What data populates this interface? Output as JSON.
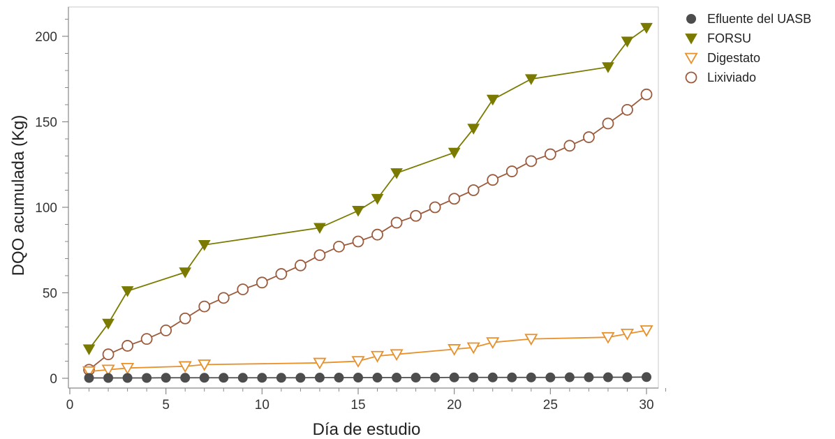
{
  "chart_data": {
    "type": "line",
    "xlabel": "Día de estudio",
    "ylabel": "DQO acumulada (Kg)",
    "xlim": [
      0,
      31
    ],
    "ylim": [
      -5,
      216
    ],
    "xticks": [
      0,
      5,
      10,
      15,
      20,
      25,
      30
    ],
    "yticks": [
      0,
      50,
      100,
      150,
      200
    ],
    "grid": false,
    "legend_position": "right",
    "series": [
      {
        "name": "Efluente del UASB",
        "color": "#4d4d4d",
        "marker": "filled-circle",
        "x": [
          1,
          2,
          3,
          4,
          5,
          6,
          7,
          8,
          9,
          10,
          11,
          12,
          13,
          14,
          15,
          16,
          17,
          18,
          19,
          20,
          21,
          22,
          23,
          24,
          25,
          26,
          27,
          28,
          29,
          30
        ],
        "y": [
          0.2,
          0.2,
          0.2,
          0.2,
          0.3,
          0.3,
          0.3,
          0.3,
          0.3,
          0.3,
          0.3,
          0.3,
          0.4,
          0.4,
          0.4,
          0.4,
          0.4,
          0.4,
          0.4,
          0.5,
          0.5,
          0.5,
          0.5,
          0.5,
          0.5,
          0.6,
          0.6,
          0.6,
          0.6,
          0.7
        ]
      },
      {
        "name": "FORSU",
        "color": "#7a7a00",
        "marker": "filled-triangle-down",
        "x": [
          1,
          2,
          3,
          6,
          7,
          13,
          15,
          16,
          17,
          20,
          21,
          22,
          24,
          28,
          29,
          30
        ],
        "y": [
          17,
          32,
          51,
          62,
          78,
          88,
          98,
          105,
          120,
          132,
          146,
          163,
          175,
          182,
          197,
          205
        ]
      },
      {
        "name": "Digestato",
        "color": "#e8902a",
        "marker": "open-triangle-down",
        "x": [
          1,
          2,
          3,
          6,
          7,
          13,
          15,
          16,
          17,
          20,
          21,
          22,
          24,
          28,
          29,
          30
        ],
        "y": [
          4,
          5,
          6,
          7,
          8,
          9,
          10,
          13,
          14,
          17,
          18,
          21,
          23,
          24,
          26,
          28
        ]
      },
      {
        "name": "Lixiviado",
        "color": "#9c5a3c",
        "marker": "open-circle",
        "x": [
          1,
          2,
          3,
          4,
          5,
          6,
          7,
          8,
          9,
          10,
          11,
          12,
          13,
          14,
          15,
          16,
          17,
          18,
          19,
          20,
          21,
          22,
          23,
          24,
          25,
          26,
          27,
          28,
          29,
          30
        ],
        "y": [
          5,
          14,
          19,
          23,
          28,
          35,
          42,
          47,
          52,
          56,
          61,
          66,
          72,
          77,
          80,
          84,
          91,
          95,
          100,
          105,
          110,
          116,
          121,
          127,
          131,
          136,
          141,
          149,
          157,
          166
        ]
      }
    ]
  }
}
